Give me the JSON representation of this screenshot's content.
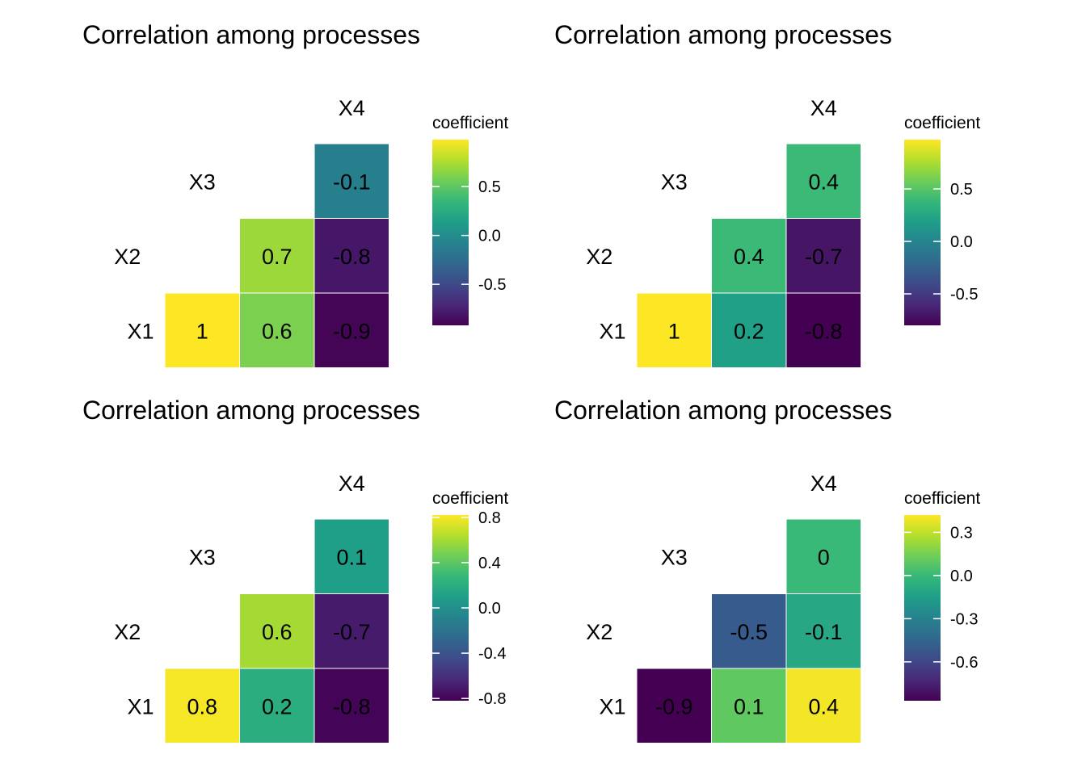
{
  "palette": {
    "viridis": [
      "#440154",
      "#482878",
      "#3E4A89",
      "#31688E",
      "#26828E",
      "#1F9E89",
      "#35B779",
      "#6DCD59",
      "#B4DE2C",
      "#FDE725"
    ],
    "background": "#ffffff",
    "cell_border": "#ffffff"
  },
  "chart_data": [
    {
      "type": "heatmap",
      "title": "Correlation among processes",
      "variables": [
        "X1",
        "X2",
        "X3",
        "X4"
      ],
      "cells": [
        {
          "row": "X1",
          "col": "X2",
          "value": 1,
          "label": "1"
        },
        {
          "row": "X1",
          "col": "X3",
          "value": 0.6,
          "label": "0.6"
        },
        {
          "row": "X1",
          "col": "X4",
          "value": -0.9,
          "label": "-0.9"
        },
        {
          "row": "X2",
          "col": "X3",
          "value": 0.7,
          "label": "0.7"
        },
        {
          "row": "X2",
          "col": "X4",
          "value": -0.8,
          "label": "-0.8"
        },
        {
          "row": "X3",
          "col": "X4",
          "value": -0.1,
          "label": "-0.1"
        }
      ],
      "legend": {
        "title": "coefficient",
        "range": [
          -0.92,
          0.98
        ],
        "ticks": [
          {
            "value": 0.5,
            "label": "0.5"
          },
          {
            "value": 0,
            "label": "0.0"
          },
          {
            "value": -0.5,
            "label": "-0.5"
          }
        ]
      }
    },
    {
      "type": "heatmap",
      "title": "Correlation among processes",
      "variables": [
        "X1",
        "X2",
        "X3",
        "X4"
      ],
      "cells": [
        {
          "row": "X1",
          "col": "X2",
          "value": 1,
          "label": "1"
        },
        {
          "row": "X1",
          "col": "X3",
          "value": 0.2,
          "label": "0.2"
        },
        {
          "row": "X1",
          "col": "X4",
          "value": -0.8,
          "label": "-0.8"
        },
        {
          "row": "X2",
          "col": "X3",
          "value": 0.4,
          "label": "0.4"
        },
        {
          "row": "X2",
          "col": "X4",
          "value": -0.7,
          "label": "-0.7"
        },
        {
          "row": "X3",
          "col": "X4",
          "value": 0.4,
          "label": "0.4"
        }
      ],
      "legend": {
        "title": "coefficient",
        "range": [
          -0.8,
          0.97
        ],
        "ticks": [
          {
            "value": 0.5,
            "label": "0.5"
          },
          {
            "value": 0,
            "label": "0.0"
          },
          {
            "value": -0.5,
            "label": "-0.5"
          }
        ]
      }
    },
    {
      "type": "heatmap",
      "title": "Correlation among processes",
      "variables": [
        "X1",
        "X2",
        "X3",
        "X4"
      ],
      "cells": [
        {
          "row": "X1",
          "col": "X2",
          "value": 0.8,
          "label": "0.8"
        },
        {
          "row": "X1",
          "col": "X3",
          "value": 0.2,
          "label": "0.2"
        },
        {
          "row": "X1",
          "col": "X4",
          "value": -0.8,
          "label": "-0.8"
        },
        {
          "row": "X2",
          "col": "X3",
          "value": 0.6,
          "label": "0.6"
        },
        {
          "row": "X2",
          "col": "X4",
          "value": -0.7,
          "label": "-0.7"
        },
        {
          "row": "X3",
          "col": "X4",
          "value": 0.1,
          "label": "0.1"
        }
      ],
      "legend": {
        "title": "coefficient",
        "range": [
          -0.82,
          0.82
        ],
        "ticks": [
          {
            "value": 0.8,
            "label": "0.8"
          },
          {
            "value": 0.4,
            "label": "0.4"
          },
          {
            "value": 0,
            "label": "0.0"
          },
          {
            "value": -0.4,
            "label": "-0.4"
          },
          {
            "value": -0.8,
            "label": "-0.8"
          }
        ]
      }
    },
    {
      "type": "heatmap",
      "title": "Correlation among processes",
      "variables": [
        "X1",
        "X2",
        "X3",
        "X4"
      ],
      "cells": [
        {
          "row": "X1",
          "col": "X2",
          "value": -0.9,
          "label": "-0.9"
        },
        {
          "row": "X1",
          "col": "X3",
          "value": 0.1,
          "label": "0.1"
        },
        {
          "row": "X1",
          "col": "X4",
          "value": 0.4,
          "label": "0.4"
        },
        {
          "row": "X2",
          "col": "X3",
          "value": -0.5,
          "label": "-0.5"
        },
        {
          "row": "X2",
          "col": "X4",
          "value": -0.1,
          "label": "-0.1"
        },
        {
          "row": "X3",
          "col": "X4",
          "value": 0,
          "label": "0"
        }
      ],
      "legend": {
        "title": "coefficient",
        "range": [
          -0.87,
          0.42
        ],
        "ticks": [
          {
            "value": 0.3,
            "label": "0.3"
          },
          {
            "value": 0,
            "label": "0.0"
          },
          {
            "value": -0.3,
            "label": "-0.3"
          },
          {
            "value": -0.6,
            "label": "-0.6"
          }
        ]
      }
    }
  ]
}
